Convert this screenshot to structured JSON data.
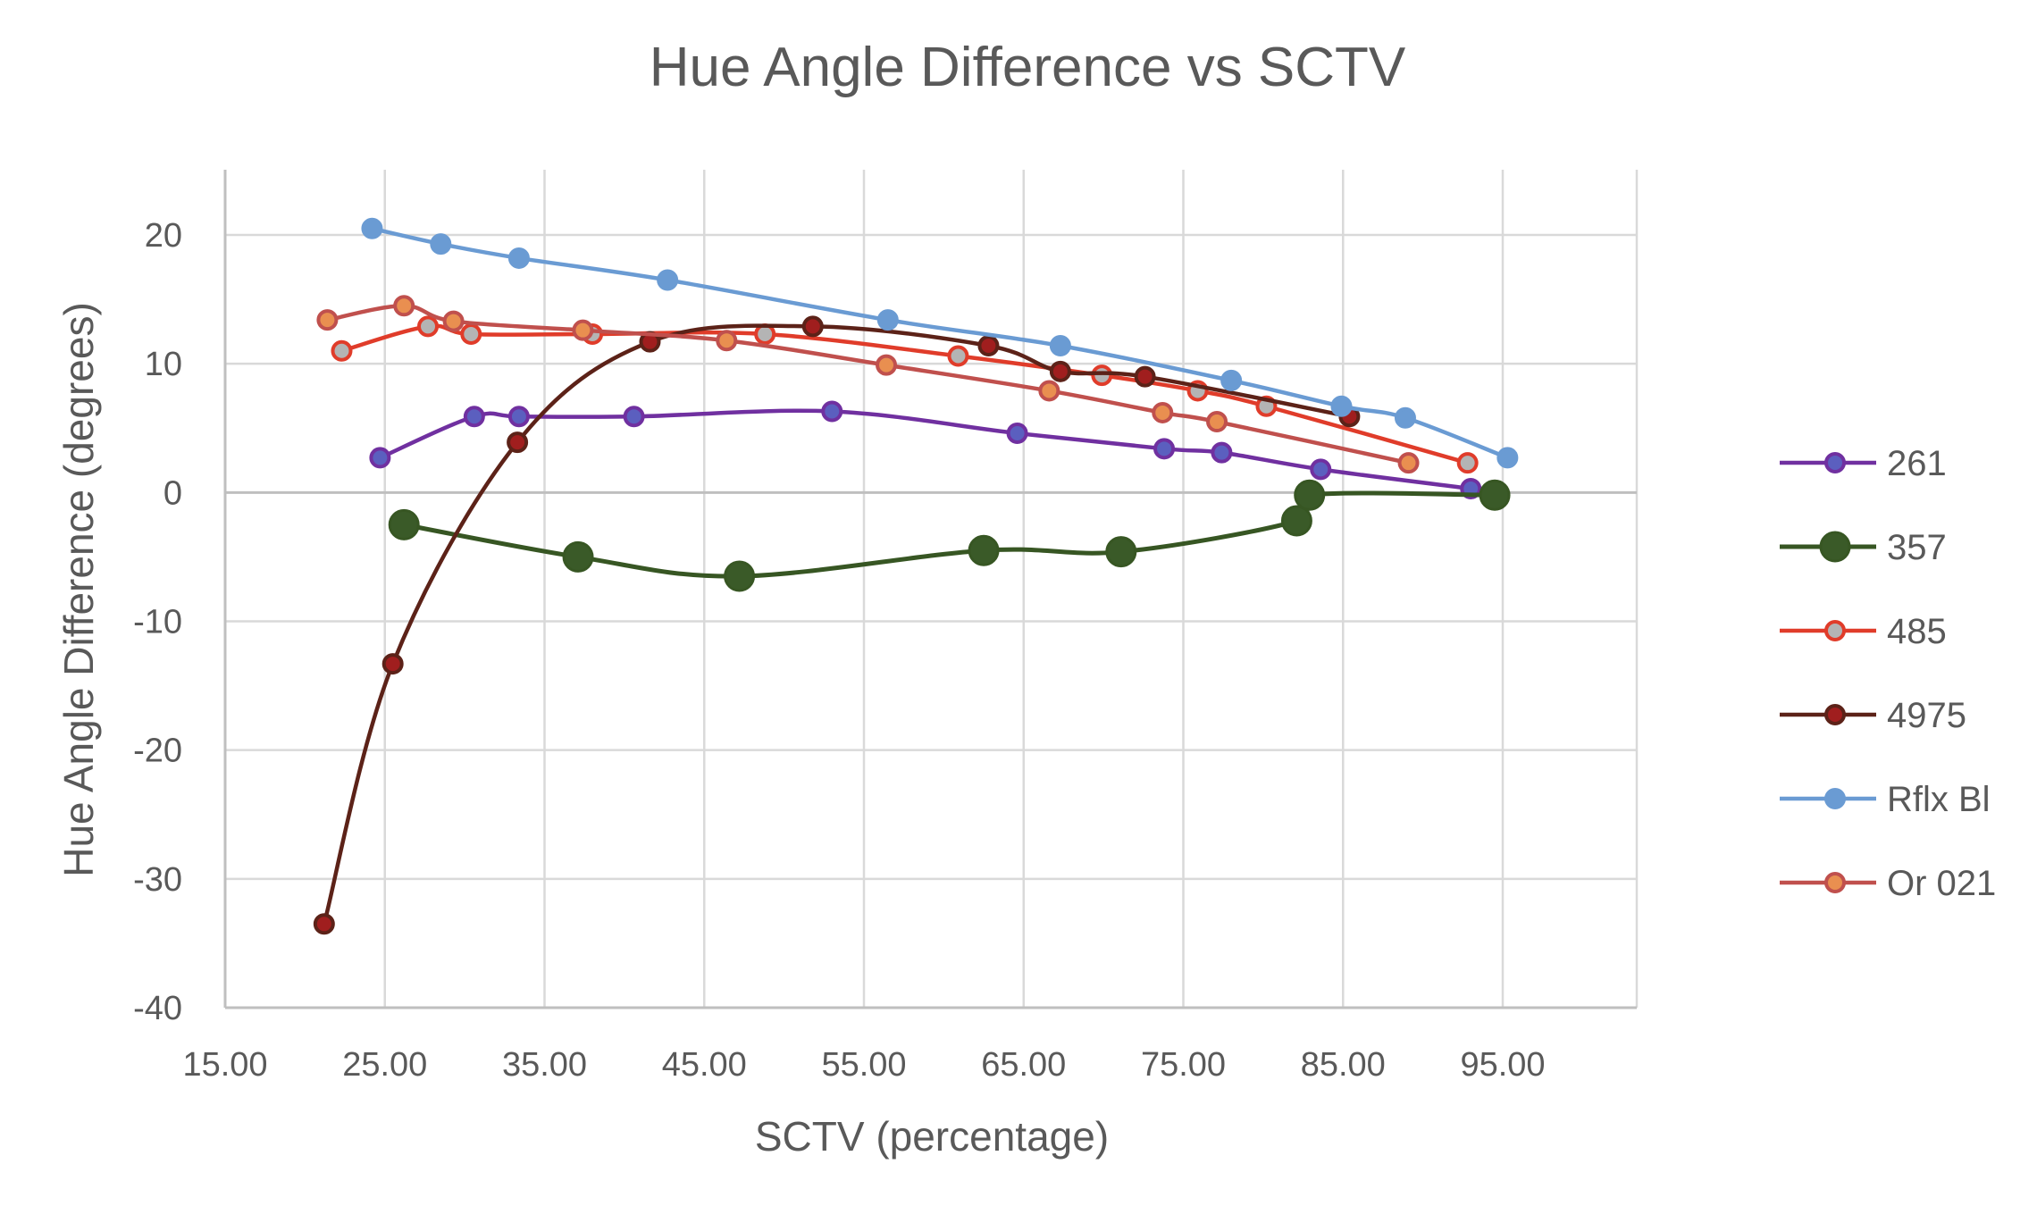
{
  "chart_data": {
    "type": "line",
    "title": "Hue Angle Difference vs SCTV",
    "xlabel": "SCTV (percentage)",
    "ylabel": "Hue Angle Difference (degrees)",
    "xlim": [
      15,
      100
    ],
    "ylim": [
      -40,
      25
    ],
    "x_ticks": [
      "15.00",
      "25.00",
      "35.00",
      "45.00",
      "55.00",
      "65.00",
      "75.00",
      "85.00",
      "95.00"
    ],
    "y_ticks": [
      "-40",
      "-30",
      "-20",
      "-10",
      "0",
      "10",
      "20"
    ],
    "grid": true,
    "legend_position": "right",
    "series": [
      {
        "name": "261",
        "line_color": "#7030a0",
        "marker_fill": "#5b5fbf",
        "marker_edge": "#7030a0",
        "points": [
          [
            24.7,
            2.7
          ],
          [
            30.6,
            5.9
          ],
          [
            33.4,
            5.9
          ],
          [
            40.6,
            5.9
          ],
          [
            53.0,
            6.3
          ],
          [
            64.6,
            4.6
          ],
          [
            73.8,
            3.4
          ],
          [
            77.4,
            3.1
          ],
          [
            83.6,
            1.8
          ],
          [
            93.0,
            0.3
          ]
        ]
      },
      {
        "name": "357",
        "line_color": "#375623",
        "marker_fill": "#3a5a28",
        "marker_edge": "#375623",
        "large": true,
        "points": [
          [
            26.2,
            -2.5
          ],
          [
            37.1,
            -5.0
          ],
          [
            47.2,
            -6.5
          ],
          [
            62.5,
            -4.5
          ],
          [
            71.1,
            -4.6
          ],
          [
            82.1,
            -2.2
          ],
          [
            82.9,
            -0.2
          ],
          [
            94.5,
            -0.2
          ]
        ]
      },
      {
        "name": "485",
        "line_color": "#e03c2a",
        "marker_fill": "#b4b4b4",
        "marker_edge": "#e03c2a",
        "points": [
          [
            22.3,
            11.0
          ],
          [
            27.7,
            12.9
          ],
          [
            30.4,
            12.3
          ],
          [
            38.0,
            12.3
          ],
          [
            48.8,
            12.3
          ],
          [
            60.9,
            10.6
          ],
          [
            69.9,
            9.1
          ],
          [
            75.9,
            7.9
          ],
          [
            80.2,
            6.7
          ],
          [
            92.8,
            2.3
          ]
        ]
      },
      {
        "name": "4975",
        "line_color": "#5c2218",
        "marker_fill": "#a01e1e",
        "marker_edge": "#5c2218",
        "points": [
          [
            21.2,
            -33.5
          ],
          [
            25.5,
            -13.3
          ],
          [
            33.3,
            3.9
          ],
          [
            41.6,
            11.7
          ],
          [
            51.8,
            12.9
          ],
          [
            62.8,
            11.4
          ],
          [
            67.3,
            9.4
          ],
          [
            72.6,
            9.0
          ],
          [
            85.4,
            5.9
          ]
        ]
      },
      {
        "name": "Rflx Bl",
        "line_color": "#6a9bd3",
        "marker_fill": "#6a9bd3",
        "marker_edge": "#6a9bd3",
        "points": [
          [
            24.2,
            20.5
          ],
          [
            28.5,
            19.3
          ],
          [
            33.4,
            18.2
          ],
          [
            42.7,
            16.5
          ],
          [
            56.5,
            13.4
          ],
          [
            67.3,
            11.4
          ],
          [
            78.0,
            8.7
          ],
          [
            84.9,
            6.7
          ],
          [
            88.9,
            5.8
          ],
          [
            95.3,
            2.7
          ]
        ]
      },
      {
        "name": "Or 021",
        "line_color": "#c0504d",
        "marker_fill": "#e98f50",
        "marker_edge": "#c0504d",
        "points": [
          [
            21.4,
            13.4
          ],
          [
            26.2,
            14.5
          ],
          [
            29.3,
            13.3
          ],
          [
            37.4,
            12.6
          ],
          [
            46.4,
            11.8
          ],
          [
            56.4,
            9.9
          ],
          [
            66.6,
            7.9
          ],
          [
            73.7,
            6.2
          ],
          [
            77.1,
            5.5
          ],
          [
            89.1,
            2.3
          ]
        ]
      }
    ]
  }
}
